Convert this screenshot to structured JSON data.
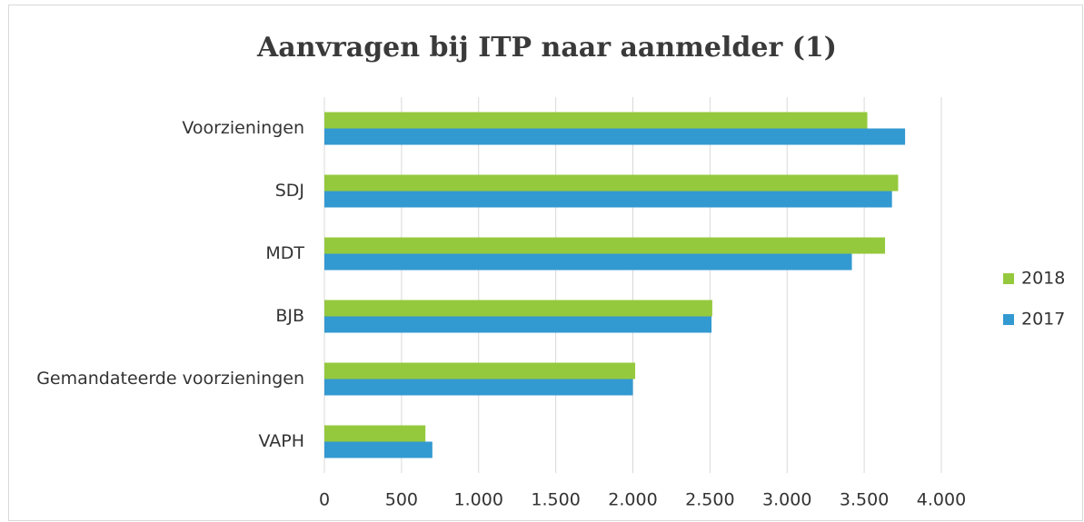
{
  "chart_data": {
    "type": "hbar",
    "title": "Aanvragen bij ITP naar aanmelder (1)",
    "categories": [
      "Voorzieningen",
      "SDJ",
      "MDT",
      "BJB",
      "Gemandateerde voorzieningen",
      "VAPH"
    ],
    "series": [
      {
        "name": "2018",
        "color": "#95c93d",
        "values": [
          3520,
          3720,
          3635,
          2515,
          2015,
          655
        ]
      },
      {
        "name": "2017",
        "color": "#3399d1",
        "values": [
          3765,
          3680,
          3420,
          2510,
          2000,
          700
        ]
      }
    ],
    "xlim": [
      0,
      4000
    ],
    "xticks": [
      0,
      500,
      {
        "value": 1000,
        "label": "1.000"
      },
      {
        "value": 1500,
        "label": "1.500"
      },
      {
        "value": 2000,
        "label": "2.000"
      },
      {
        "value": 2500,
        "label": "2.500"
      },
      {
        "value": 3000,
        "label": "3.000"
      },
      {
        "value": 3500,
        "label": "3.500"
      },
      {
        "value": 4000,
        "label": "4.000"
      }
    ],
    "grid": true,
    "legend": "right"
  }
}
